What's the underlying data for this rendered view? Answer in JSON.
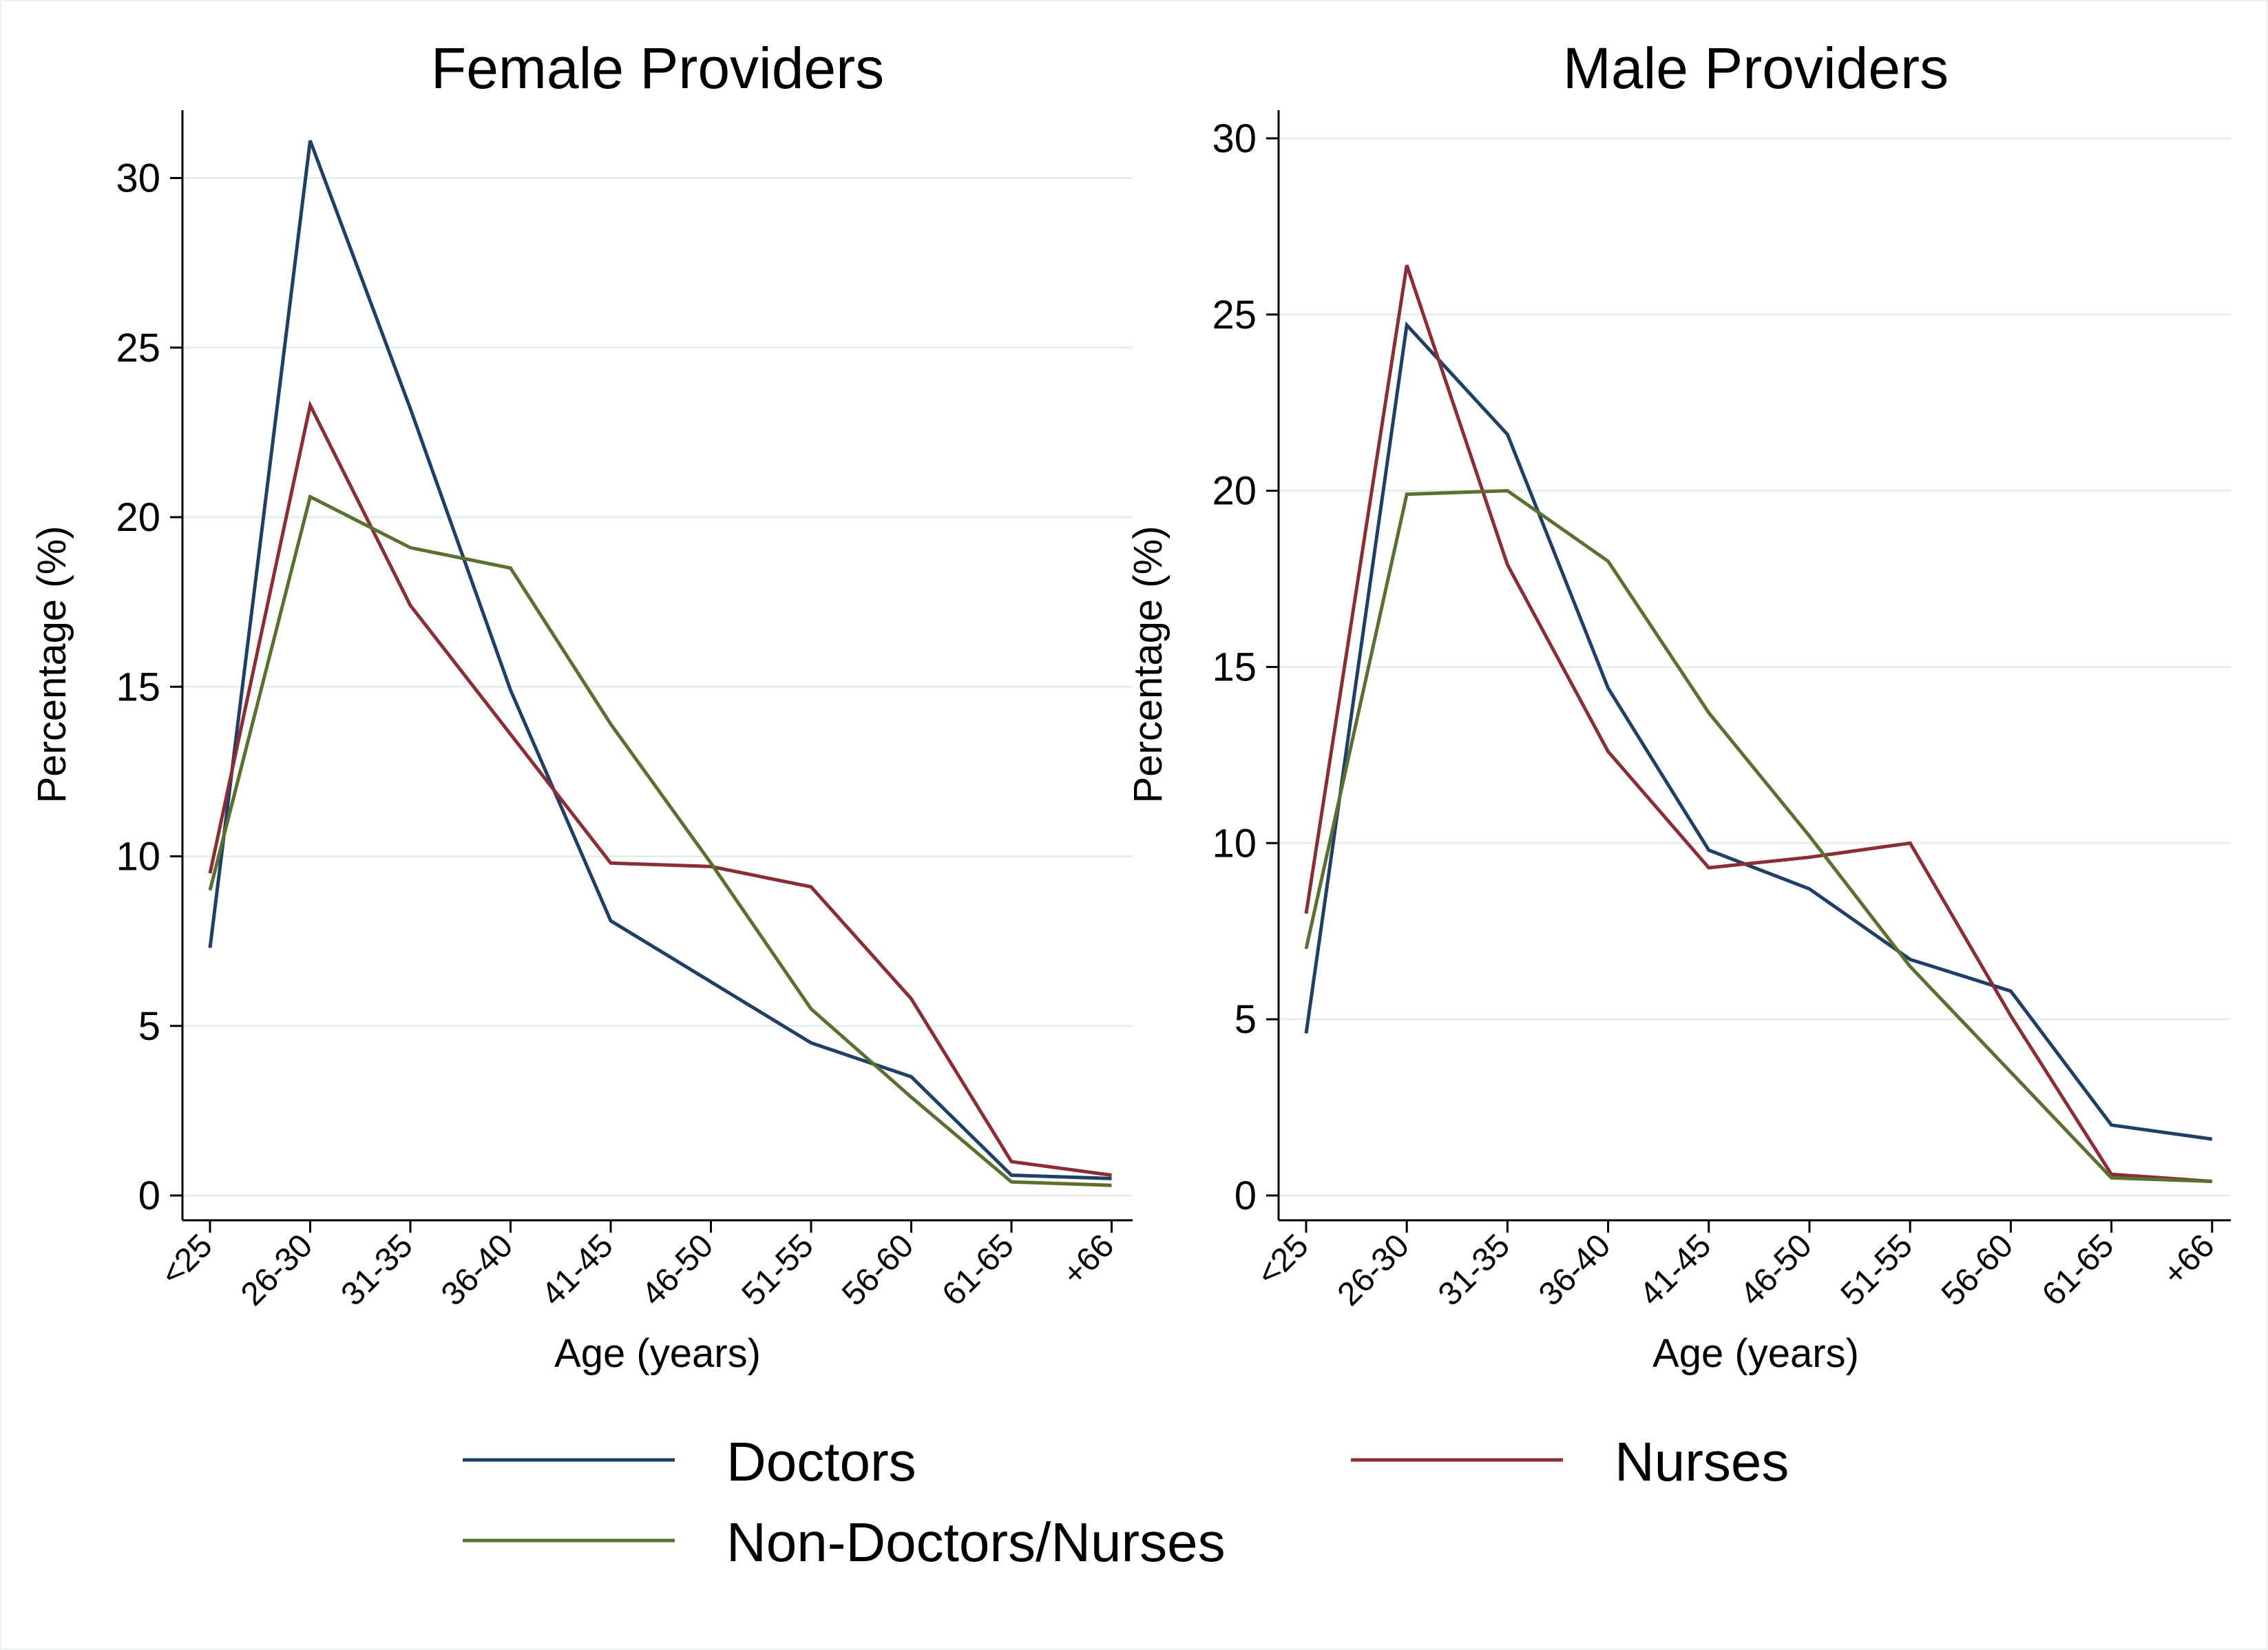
{
  "chart_data": [
    {
      "type": "line",
      "title": "Female Providers",
      "xlabel": "Age (years)",
      "ylabel": "Percentage (%)",
      "ylim": [
        0,
        32
      ],
      "yticks": [
        0,
        5,
        10,
        15,
        20,
        25,
        30
      ],
      "grid": true,
      "categories": [
        "<25",
        "26-30",
        "31-35",
        "36-40",
        "41-45",
        "46-50",
        "51-55",
        "56-60",
        "61-65",
        "+66"
      ],
      "series": [
        {
          "name": "Doctors",
          "color": "#1f3f66",
          "values": [
            7.3,
            31.1,
            23.2,
            14.9,
            8.1,
            6.3,
            4.5,
            3.5,
            0.6,
            0.5
          ]
        },
        {
          "name": "Nurses",
          "color": "#8b2d35",
          "values": [
            9.5,
            23.3,
            17.4,
            13.6,
            9.8,
            9.7,
            9.1,
            5.8,
            1.0,
            0.6
          ]
        },
        {
          "name": "Non-Doctors/Nurses",
          "color": "#5a7030",
          "values": [
            9.0,
            20.6,
            19.1,
            18.5,
            13.9,
            9.8,
            5.5,
            2.9,
            0.4,
            0.3
          ]
        }
      ]
    },
    {
      "type": "line",
      "title": "Male Providers",
      "xlabel": "Age (years)",
      "ylabel": "Percentage (%)",
      "ylim": [
        0,
        30.8
      ],
      "yticks": [
        0,
        5,
        10,
        15,
        20,
        25,
        30
      ],
      "grid": true,
      "categories": [
        "<25",
        "26-30",
        "31-35",
        "36-40",
        "41-45",
        "46-50",
        "51-55",
        "56-60",
        "61-65",
        "+66"
      ],
      "series": [
        {
          "name": "Doctors",
          "color": "#1f3f66",
          "values": [
            4.6,
            24.7,
            21.6,
            14.4,
            9.8,
            8.7,
            6.7,
            5.8,
            2.0,
            1.6
          ]
        },
        {
          "name": "Nurses",
          "color": "#8b2d35",
          "values": [
            8.0,
            26.4,
            17.9,
            12.6,
            9.3,
            9.6,
            10.0,
            5.1,
            0.6,
            0.4
          ]
        },
        {
          "name": "Non-Doctors/Nurses",
          "color": "#5a7030",
          "values": [
            7.0,
            19.9,
            20.0,
            18.0,
            13.7,
            10.2,
            6.5,
            3.5,
            0.5,
            0.4
          ]
        }
      ]
    }
  ],
  "legend": {
    "position": "bottom",
    "items": [
      {
        "label": "Doctors",
        "color": "#1f3f66"
      },
      {
        "label": "Nurses",
        "color": "#8b2d35"
      },
      {
        "label": "Non-Doctors/Nurses",
        "color": "#5a7030"
      }
    ]
  }
}
